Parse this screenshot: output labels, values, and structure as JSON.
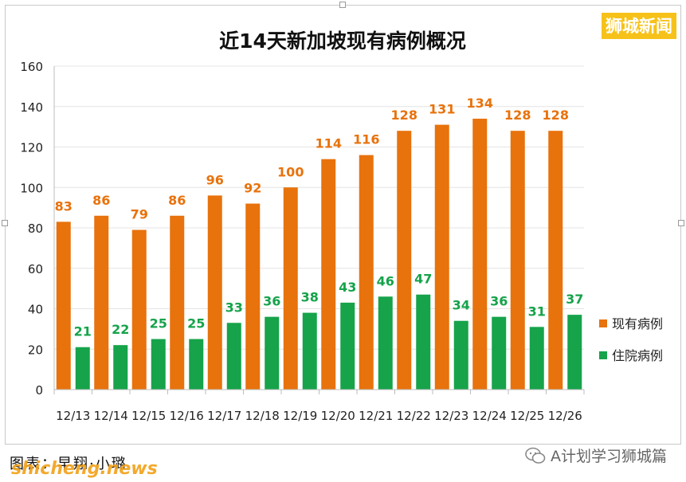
{
  "brand": "狮城新闻",
  "credit": "图表：早翔·小璐",
  "watermark_site": "shicheng.news",
  "wechat_label": "A计划学习狮城篇",
  "chart_data": {
    "type": "bar",
    "title": "近14天新加坡现有病例概况",
    "categories": [
      "12/13",
      "12/14",
      "12/15",
      "12/16",
      "12/17",
      "12/18",
      "12/19",
      "12/20",
      "12/21",
      "12/22",
      "12/23",
      "12/24",
      "12/25",
      "12/26"
    ],
    "series": [
      {
        "name": "现有病例",
        "color": "#e8720c",
        "values": [
          83,
          86,
          79,
          86,
          96,
          92,
          100,
          114,
          116,
          128,
          131,
          134,
          128,
          128
        ]
      },
      {
        "name": "住院病例",
        "color": "#16a34a",
        "values": [
          21,
          22,
          25,
          25,
          33,
          36,
          38,
          43,
          46,
          47,
          34,
          36,
          31,
          37
        ]
      }
    ],
    "ylim": [
      0,
      160
    ],
    "yticks": [
      0,
      20,
      40,
      60,
      80,
      100,
      120,
      140,
      160
    ],
    "grid": true,
    "legend_position": "right"
  }
}
